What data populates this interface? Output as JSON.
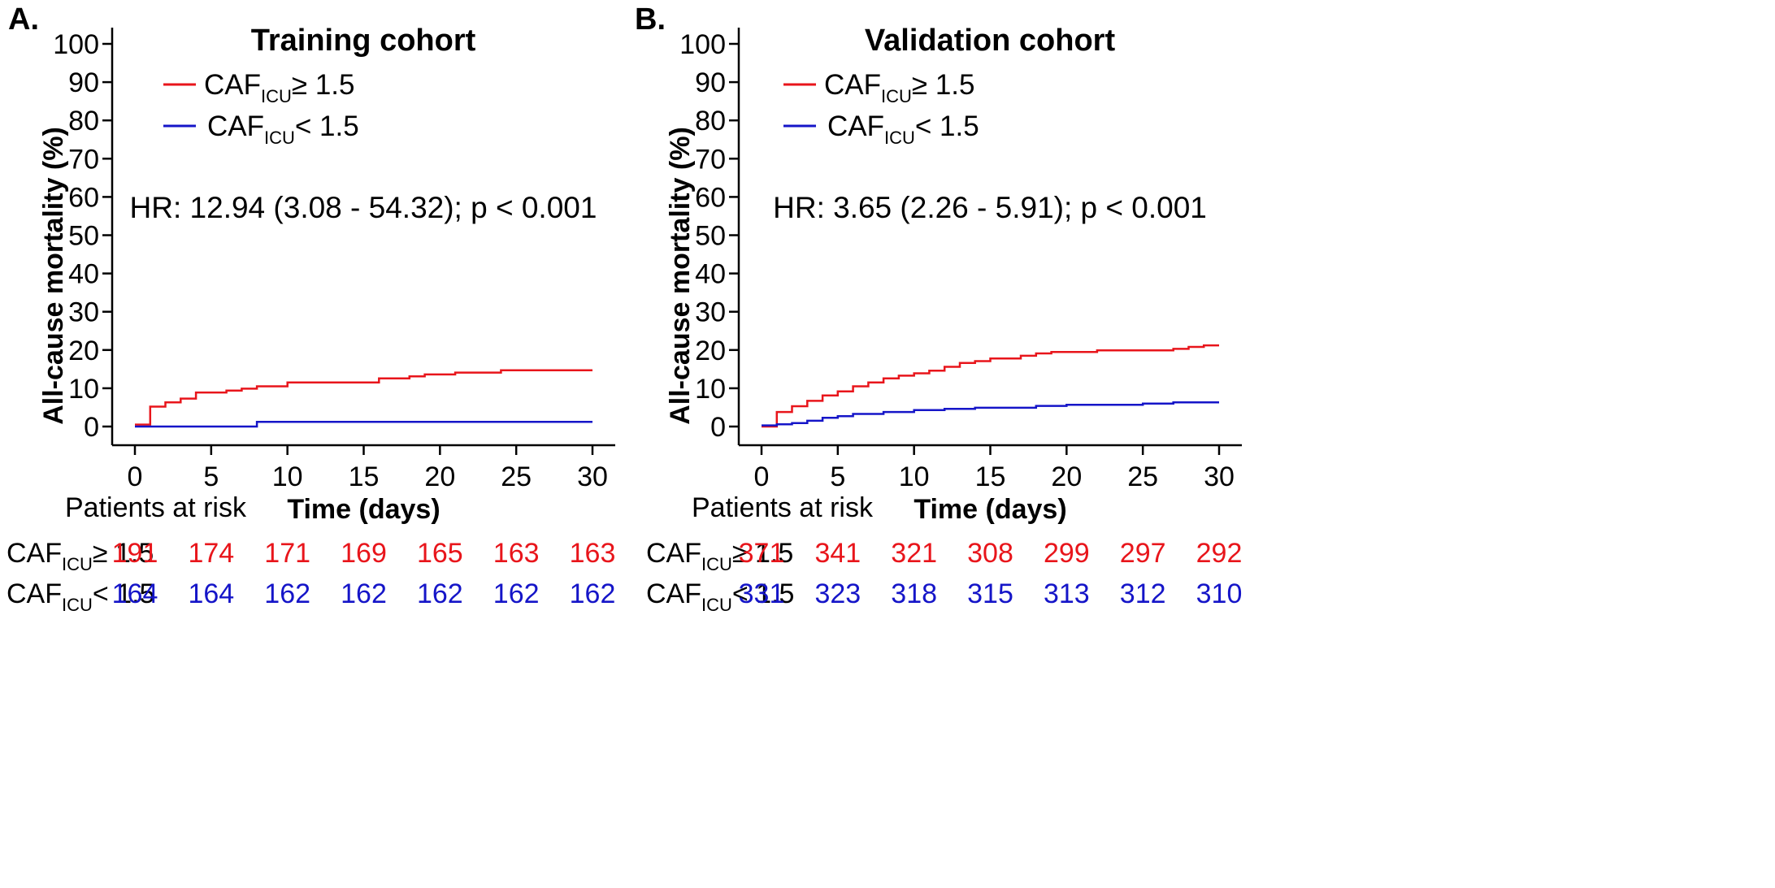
{
  "colors": {
    "high": "#e8151b",
    "low": "#1515c8",
    "axis": "#000000"
  },
  "panels": [
    {
      "label": "A.",
      "risk_header": "Patients at risk",
      "hr_text": "HR: 12.94 (3.08 - 54.32); p < 0.001",
      "legend": [
        {
          "base": "CAF",
          "sub": "ICU",
          "rest": "≥ 1.5",
          "color_key": "high"
        },
        {
          "base": "CAF",
          "sub": "ICU",
          "rest": "< 1.5",
          "color_key": "low"
        }
      ],
      "risk_rows": [
        {
          "base": "CAF",
          "sub": "ICU",
          "rest": "≥ 1.5",
          "color_key": "high",
          "values": [
            "191",
            "174",
            "171",
            "169",
            "165",
            "163",
            "163"
          ]
        },
        {
          "base": "CAF",
          "sub": "ICU",
          "rest": "< 1.5",
          "color_key": "low",
          "values": [
            "164",
            "164",
            "162",
            "162",
            "162",
            "162",
            "162"
          ]
        }
      ]
    },
    {
      "label": "B.",
      "risk_header": "Patients at risk",
      "hr_text": "HR: 3.65 (2.26 - 5.91); p < 0.001",
      "legend": [
        {
          "base": "CAF",
          "sub": "ICU",
          "rest": "≥ 1.5",
          "color_key": "high"
        },
        {
          "base": "CAF",
          "sub": "ICU",
          "rest": "< 1.5",
          "color_key": "low"
        }
      ],
      "risk_rows": [
        {
          "base": "CAF",
          "sub": "ICU",
          "rest": "≥ 1.5",
          "color_key": "high",
          "values": [
            "371",
            "341",
            "321",
            "308",
            "299",
            "297",
            "292"
          ]
        },
        {
          "base": "CAF",
          "sub": "ICU",
          "rest": "< 1.5",
          "color_key": "low",
          "values": [
            "331",
            "323",
            "318",
            "315",
            "313",
            "312",
            "310"
          ]
        }
      ]
    }
  ],
  "chart_data": [
    {
      "type": "line",
      "step": true,
      "title": "Training cohort",
      "xlabel": "Time (days)",
      "ylabel": "All-cause mortality (%)",
      "xlim": [
        0,
        30
      ],
      "ylim": [
        0,
        100
      ],
      "xticks": [
        0,
        5,
        10,
        15,
        20,
        25,
        30
      ],
      "yticks": [
        0,
        10,
        20,
        30,
        40,
        50,
        60,
        70,
        80,
        90,
        100
      ],
      "legend_position": "top-left",
      "grid": false,
      "series": [
        {
          "name": "CAF ICU ≥ 1.5",
          "color_key": "high",
          "x": [
            0,
            1,
            1,
            2,
            3,
            4,
            6,
            7,
            8,
            10,
            16,
            18,
            19,
            21,
            24,
            30
          ],
          "y": [
            0.5,
            0.5,
            5.2,
            6.3,
            7.3,
            8.9,
            9.4,
            9.9,
            10.5,
            11.5,
            12.6,
            13.1,
            13.6,
            14.1,
            14.7,
            14.7
          ]
        },
        {
          "name": "CAF ICU < 1.5",
          "color_key": "low",
          "x": [
            0,
            8,
            30
          ],
          "y": [
            0,
            1.2,
            1.2
          ]
        }
      ]
    },
    {
      "type": "line",
      "step": true,
      "title": "Validation cohort",
      "xlabel": "Time (days)",
      "ylabel": "All-cause mortality (%)",
      "xlim": [
        0,
        30
      ],
      "ylim": [
        0,
        100
      ],
      "xticks": [
        0,
        5,
        10,
        15,
        20,
        25,
        30
      ],
      "yticks": [
        0,
        10,
        20,
        30,
        40,
        50,
        60,
        70,
        80,
        90,
        100
      ],
      "legend_position": "top-left",
      "grid": false,
      "series": [
        {
          "name": "CAF ICU ≥ 1.5",
          "color_key": "high",
          "x": [
            0,
            1,
            1,
            2,
            3,
            4,
            5,
            6,
            7,
            8,
            9,
            10,
            11,
            12,
            13,
            14,
            15,
            17,
            18,
            19,
            22,
            27,
            28,
            29,
            30
          ],
          "y": [
            0,
            0,
            3.8,
            5.3,
            6.7,
            8.1,
            9.2,
            10.5,
            11.5,
            12.6,
            13.3,
            13.9,
            14.6,
            15.6,
            16.6,
            17.1,
            17.8,
            18.5,
            19.1,
            19.5,
            19.9,
            20.3,
            20.8,
            21.2,
            21.2
          ]
        },
        {
          "name": "CAF ICU < 1.5",
          "color_key": "low",
          "x": [
            0,
            1,
            2,
            3,
            4,
            5,
            6,
            8,
            10,
            12,
            14,
            18,
            20,
            25,
            27,
            30
          ],
          "y": [
            0.3,
            0.6,
            0.9,
            1.5,
            2.3,
            2.7,
            3.3,
            3.8,
            4.3,
            4.6,
            4.9,
            5.4,
            5.7,
            6.0,
            6.3,
            6.3
          ]
        }
      ]
    }
  ]
}
